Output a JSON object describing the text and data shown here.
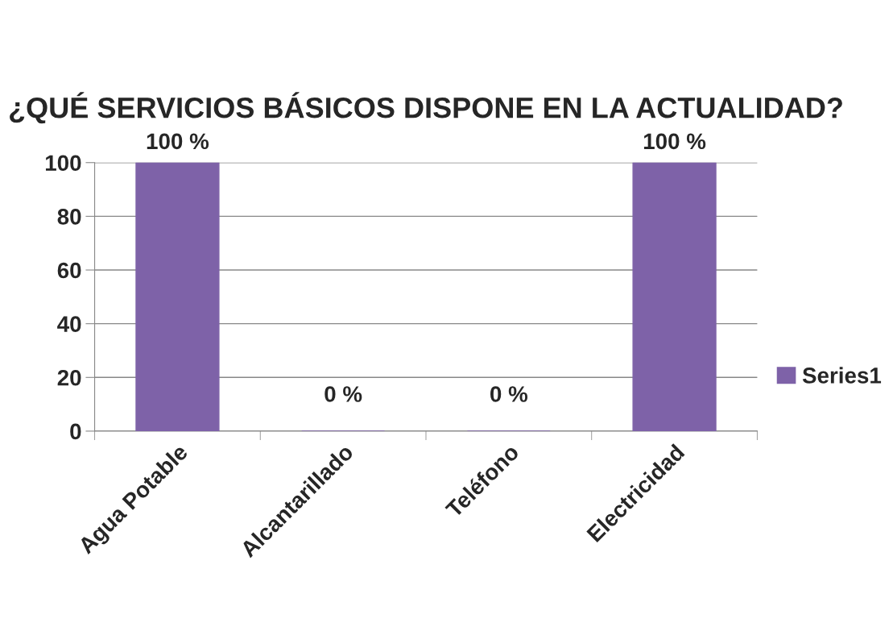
{
  "chart_data": {
    "type": "bar",
    "title": "¿QUÉ SERVICIOS BÁSICOS DISPONE EN LA ACTUALIDAD?",
    "categories": [
      "Agua Potable",
      "Alcantarillado",
      "Teléfono",
      "Electricidad"
    ],
    "series": [
      {
        "name": "Series1",
        "color": "#7e62a8",
        "values": [
          100,
          0,
          0,
          100
        ],
        "value_labels": [
          "100 %",
          "0 %",
          "0 %",
          "100 %"
        ]
      }
    ],
    "ylim": [
      0,
      100
    ],
    "yticks": [
      0,
      20,
      40,
      60,
      80,
      100
    ],
    "grid": "y",
    "legend": "right"
  }
}
